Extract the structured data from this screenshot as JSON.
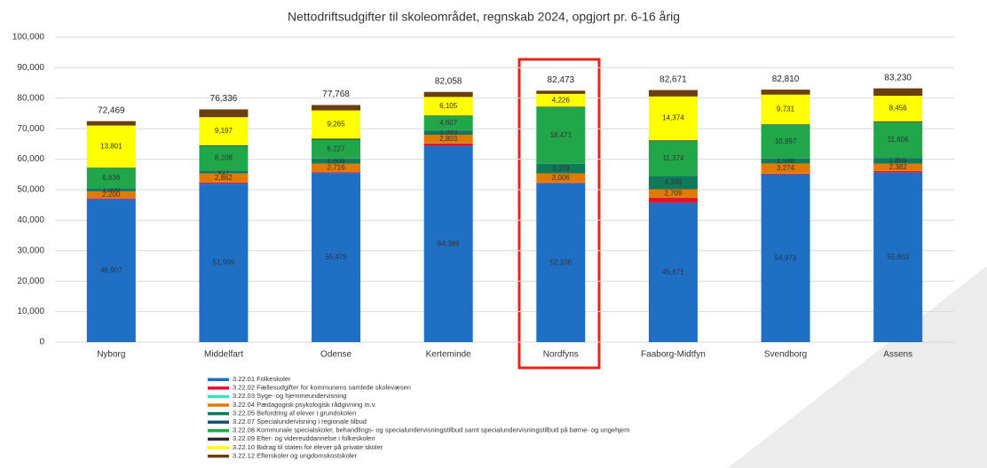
{
  "chart_data": {
    "type": "stacked_bar",
    "title": "Nettodriftsudgifter til skoleområdet, regnskab 2024, opgjort pr. 6-16 årig",
    "categories": [
      "Nyborg",
      "Middelfart",
      "Odense",
      "Kerteminde",
      "Nordfyns",
      "Faaborg-Midtfyn",
      "Svendborg",
      "Assens"
    ],
    "ylim": [
      0,
      100000
    ],
    "yticks": [
      0,
      {
        "value": 10000,
        "label": "10,000"
      },
      {
        "value": 20000,
        "label": "20,000"
      },
      {
        "value": 30000,
        "label": "30,000"
      },
      {
        "value": 40000,
        "label": "40,000"
      },
      {
        "value": 50000,
        "label": "50,000"
      },
      {
        "value": 60000,
        "label": "60,000"
      },
      {
        "value": 70000,
        "label": "70,000"
      },
      {
        "value": 80000,
        "label": "80,000"
      },
      {
        "value": 90000,
        "label": "90,000"
      },
      {
        "value": 100000,
        "label": "100,000"
      }
    ],
    "grid": true,
    "legend": "bottom",
    "series": [
      {
        "name": "3.22.01 Folkeskoler",
        "color": "#1f6fc5",
        "values": [
          46907,
          51999,
          55479,
          64369,
          52106,
          45671,
          54973,
          55603
        ],
        "value_labels": [
          "46,907",
          "51,999",
          "55,479",
          "64,369",
          "52,106",
          "45,671",
          "54,973",
          "55,603"
        ]
      },
      {
        "name": "3.22.02 Fællesudgifter for kommunens samlede skolevæsen",
        "color": "#e8112d",
        "values": [
          300,
          400,
          300,
          800,
          200,
          1700,
          300,
          500
        ]
      },
      {
        "name": "3.22.03 Syge- og hjemmeundervisning",
        "color": "#3de0c0",
        "values": [
          50,
          50,
          50,
          50,
          50,
          50,
          50,
          50
        ]
      },
      {
        "name": "3.22.04 Pædagogisk psykologisk rådgivning m.v.",
        "color": "#e07b00",
        "values": [
          2200,
          2862,
          2716,
          2803,
          3006,
          2709,
          3274,
          2382
        ],
        "value_labels": [
          "2,200",
          "2,862",
          "2,716",
          "2,803",
          "3,006",
          "2,709",
          "3,274",
          "2,382"
        ]
      },
      {
        "name": "3.22.05 Befordring af elever i grundskolen",
        "color": "#0f7a5a",
        "values": [
          1000,
          917,
          1604,
          1383,
          3119,
          4340,
          1598,
          1859
        ],
        "value_labels": [
          "1,000",
          "917",
          "1,604",
          "1,383",
          "3,119",
          "4,340",
          "1,598",
          "1,859"
        ]
      },
      {
        "name": "3.22.07 Specialundervisning i regionale tilbud",
        "color": "#1d4f6e",
        "values": [
          50,
          50,
          50,
          100,
          50,
          50,
          50,
          50
        ]
      },
      {
        "name": "3.22.08 Kommunale specialskoler, behandlings- og specialundervisningstilbud samt specialundervisningstilbud på børne- og ungehjem",
        "color": "#21a64a",
        "values": [
          6636,
          8108,
          6227,
          4607,
          18471,
          11374,
          10997,
          11606
        ],
        "value_labels": [
          "6,636",
          "8,108",
          "6,227",
          "4,607",
          "18,471",
          "11,374",
          "10,997",
          "11,606"
        ]
      },
      {
        "name": "3.22.09 Efter- og videreuddannelse i folkeskolen",
        "color": "#2b2b2b",
        "values": [
          100,
          200,
          300,
          200,
          200,
          300,
          200,
          300
        ]
      },
      {
        "name": "3.22.10 Bidrag til staten for elever på private skoler",
        "color": "#ffff00",
        "values": [
          13801,
          9197,
          9265,
          6105,
          4226,
          14374,
          9731,
          8456
        ],
        "value_labels": [
          "13,801",
          "9,197",
          "9,265",
          "6,105",
          "4,226",
          "14,374",
          "9,731",
          "8,456"
        ]
      },
      {
        "name": "3.22.12 Efterskoler og ungdomskostskoler",
        "color": "#6b3f10",
        "values": [
          1425,
          2553,
          1777,
          1641,
          1045,
          2103,
          1637,
          2424
        ]
      }
    ],
    "totals": [
      72469,
      76336,
      77768,
      82058,
      82473,
      82671,
      82810,
      83230
    ],
    "total_labels": [
      "72,469",
      "76,336",
      "77,768",
      "82,058",
      "82,473",
      "82,671",
      "82,810",
      "83,230"
    ]
  }
}
